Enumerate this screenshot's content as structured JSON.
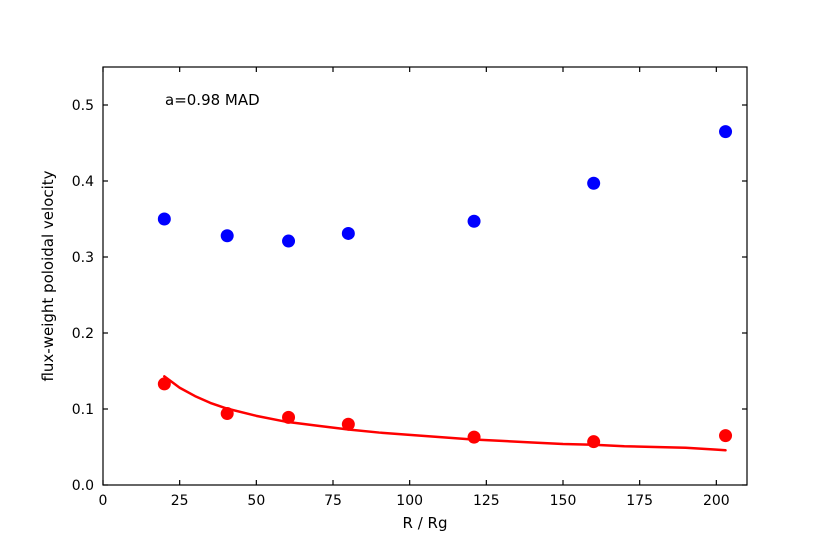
{
  "chart_data": {
    "type": "scatter",
    "title": "",
    "xlabel": "R / Rg",
    "ylabel": "flux-weight poloidal velocity",
    "xlim": [
      0,
      210
    ],
    "ylim": [
      0,
      0.55
    ],
    "xticks": [
      0,
      25,
      50,
      75,
      100,
      125,
      150,
      175,
      200
    ],
    "yticks": [
      0.0,
      0.1,
      0.2,
      0.3,
      0.4,
      0.5
    ],
    "xtick_labels": [
      "0",
      "25",
      "50",
      "75",
      "100",
      "125",
      "150",
      "175",
      "200"
    ],
    "ytick_labels": [
      "0.0",
      "0.1",
      "0.2",
      "0.3",
      "0.4",
      "0.5"
    ],
    "grid": false,
    "annotation": "a=0.98 MAD",
    "series": [
      {
        "kind": "points",
        "color": "#0000ff",
        "x": [
          20,
          40.5,
          60.5,
          80,
          121,
          160,
          203
        ],
        "y": [
          0.35,
          0.328,
          0.321,
          0.331,
          0.347,
          0.397,
          0.465
        ]
      },
      {
        "kind": "points",
        "color": "#ff0000",
        "x": [
          20,
          40.5,
          60.5,
          80,
          121,
          160,
          203
        ],
        "y": [
          0.133,
          0.094,
          0.089,
          0.08,
          0.063,
          0.057,
          0.065
        ]
      },
      {
        "kind": "line",
        "color": "#ff0000",
        "x": [
          20,
          25,
          30,
          35,
          40,
          50,
          60,
          70,
          80,
          90,
          100,
          110,
          120,
          130,
          140,
          150,
          160,
          170,
          180,
          190,
          200,
          203
        ],
        "y": [
          0.143,
          0.128,
          0.117,
          0.108,
          0.101,
          0.091,
          0.083,
          0.078,
          0.073,
          0.069,
          0.066,
          0.063,
          0.06,
          0.058,
          0.056,
          0.054,
          0.053,
          0.051,
          0.05,
          0.049,
          0.0465,
          0.0457
        ]
      }
    ]
  }
}
